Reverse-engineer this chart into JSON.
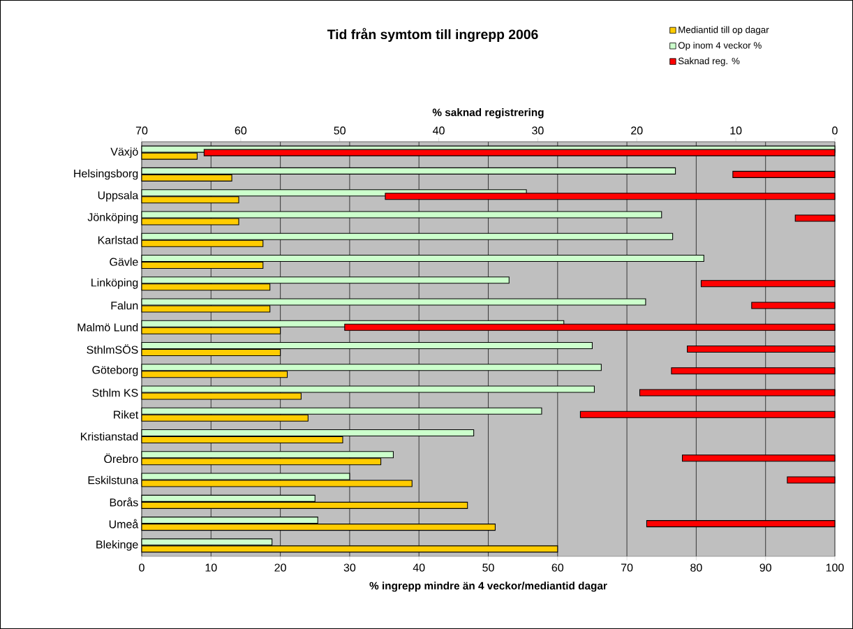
{
  "chart_data": {
    "type": "bar",
    "orientation": "horizontal",
    "title": "Tid från symtom till ingrepp 2006",
    "xlabel": "% ingrepp mindre än 4 veckor/mediantid dagar",
    "x2label": "% saknad registrering",
    "categories": [
      "Växjö",
      "Helsingsborg",
      "Uppsala",
      "Jönköping",
      "Karlstad",
      "Gävle",
      "Linköping",
      "Falun",
      "Malmö Lund",
      "SthlmSÖS",
      "Göteborg",
      "Sthlm KS",
      "Riket",
      "Kristianstad",
      "Örebro",
      "Eskilstuna",
      "Borås",
      "Umeå",
      "Blekinge"
    ],
    "series": [
      {
        "name": "Mediantid till op dagar",
        "color": "#ffcc00",
        "values": [
          8,
          13,
          14,
          14,
          17.5,
          17.5,
          18.5,
          18.5,
          20,
          20,
          21,
          23,
          24,
          29,
          34.5,
          39,
          47,
          51,
          60
        ]
      },
      {
        "name": "Op inom 4 veckor %",
        "color": "#ccffcc",
        "values": [
          100,
          77,
          55.5,
          75,
          76.6,
          81.1,
          53,
          72.7,
          60.9,
          65,
          66.3,
          65.3,
          57.7,
          47.9,
          36.3,
          30,
          25,
          25.4,
          18.8
        ]
      },
      {
        "name": "Saknad reg. %",
        "color": "#ff0000",
        "axis": "x2",
        "values": [
          63.7,
          10.3,
          45.4,
          4,
          null,
          null,
          13.5,
          8.4,
          49.5,
          14.9,
          16.5,
          19.7,
          25.7,
          null,
          15.4,
          4.8,
          null,
          19,
          null
        ]
      }
    ],
    "xlim": [
      0,
      100
    ],
    "xticks": [
      0,
      10,
      20,
      30,
      40,
      50,
      60,
      70,
      80,
      90,
      100
    ],
    "x2lim": [
      70,
      0
    ],
    "x2ticks": [
      70,
      60,
      50,
      40,
      30,
      20,
      10,
      0
    ],
    "grid": "x",
    "legend": "top right"
  }
}
